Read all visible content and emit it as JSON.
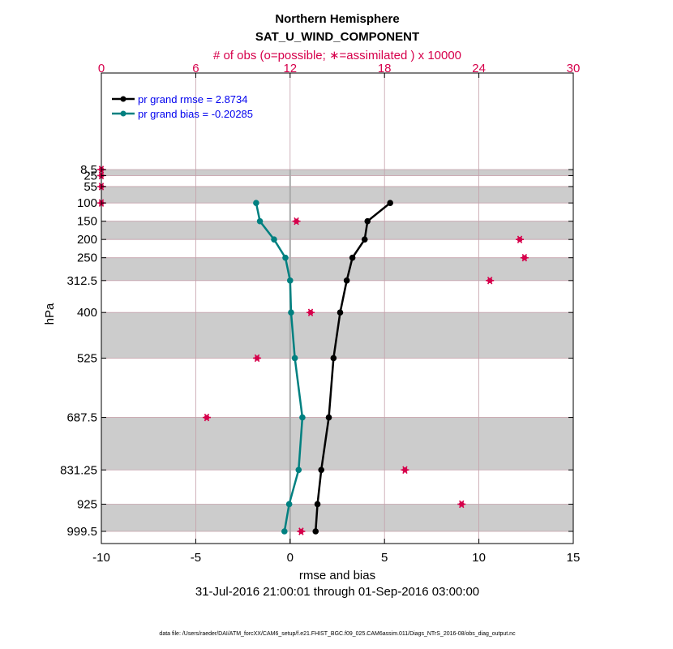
{
  "chart_data": {
    "type": "line",
    "title": "Northern Hemisphere",
    "subtitle": "SAT_U_WIND_COMPONENT",
    "top_axis_label": "# of obs (o=possible; ∗=assimilated ) x 10000",
    "top_ticks": [
      0,
      6,
      12,
      18,
      24,
      30
    ],
    "top_range": [
      0,
      30
    ],
    "xlabel": "rmse and bias",
    "x_ticks": [
      -10,
      -5,
      0,
      5,
      10,
      15
    ],
    "x_range": [
      -10,
      15
    ],
    "ylabel": "hPa",
    "date_range": "31-Jul-2016 21:00:01 through 01-Sep-2016 03:00:00",
    "footnote": "data file: /Users/raeder/DAI/ATM_forcXX/CAM6_setup/f.e21.FHIST_BGC.f09_025.CAM6assim.011/Diags_NTrS_2016-08/obs_diag_output.nc",
    "levels": [
      8.5,
      25,
      55,
      100,
      150,
      200,
      250,
      312.5,
      400,
      525,
      687.5,
      831.25,
      925,
      999.5
    ],
    "level_labels": [
      "8.5",
      "25",
      "55",
      "100",
      "150",
      "200",
      "250",
      "312.5",
      "400",
      "525",
      "687.5",
      "831.25",
      "925",
      "999.5"
    ],
    "colors": {
      "rmse": "#000000",
      "bias": "#008080",
      "obs": "#d6004b",
      "band": "#cccccc",
      "grid_red": "#c4a0aa"
    },
    "legend": {
      "rmse": "pr grand rmse = 2.8734",
      "bias": "pr grand bias = -0.20285",
      "position": "top-left"
    },
    "series": [
      {
        "name": "pr grand rmse",
        "levels": [
          100,
          150,
          200,
          250,
          312.5,
          400,
          525,
          687.5,
          831.25,
          925,
          999.5
        ],
        "values": [
          5.3,
          4.1,
          3.95,
          3.3,
          3.0,
          2.65,
          2.3,
          2.05,
          1.65,
          1.45,
          1.35
        ]
      },
      {
        "name": "pr grand bias",
        "levels": [
          100,
          150,
          200,
          250,
          312.5,
          400,
          525,
          687.5,
          831.25,
          925,
          999.5
        ],
        "values": [
          -1.8,
          -1.6,
          -0.85,
          -0.25,
          0.0,
          0.05,
          0.25,
          0.65,
          0.45,
          -0.05,
          -0.3
        ]
      },
      {
        "name": "# of obs assimilated (x10000)",
        "levels": [
          8.5,
          25,
          55,
          100,
          150,
          200,
          250,
          312.5,
          400,
          525,
          687.5,
          831.25,
          925,
          999.5
        ],
        "values": [
          0,
          0,
          0,
          0,
          12.4,
          26.6,
          26.9,
          24.7,
          13.3,
          9.9,
          6.7,
          19.3,
          22.9,
          12.7
        ]
      }
    ],
    "bands": [
      [
        8.5,
        25
      ],
      [
        55,
        100
      ],
      [
        150,
        200
      ],
      [
        250,
        312.5
      ],
      [
        400,
        525
      ],
      [
        687.5,
        831.25
      ],
      [
        925,
        999.5
      ]
    ],
    "pressure_range": [
      8.5,
      999.5
    ]
  }
}
